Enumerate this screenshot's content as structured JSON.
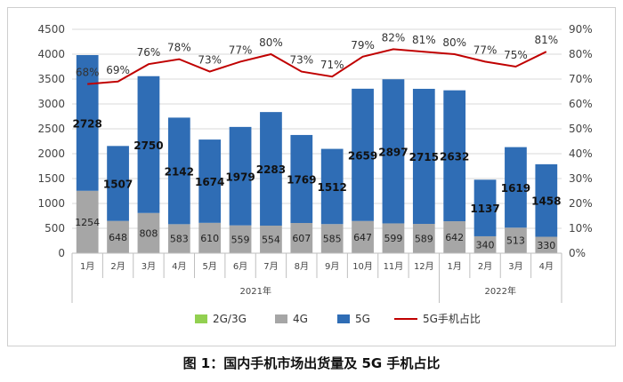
{
  "caption": "图 1：国内手机市场出货量及 5G 手机占比",
  "chart_data": {
    "type": "bar",
    "stacked": true,
    "categories": [
      "1月",
      "2月",
      "3月",
      "4月",
      "5月",
      "6月",
      "7月",
      "8月",
      "9月",
      "10月",
      "11月",
      "12月",
      "1月",
      "2月",
      "3月",
      "4月"
    ],
    "groups": [
      {
        "label": "2021年",
        "start": 0,
        "end": 11
      },
      {
        "label": "2022年",
        "start": 12,
        "end": 15
      }
    ],
    "series": [
      {
        "name": "2G/3G",
        "color": "#92d050",
        "values": [
          0,
          0,
          0,
          0,
          0,
          0,
          0,
          0,
          0,
          0,
          0,
          0,
          0,
          0,
          0,
          0
        ]
      },
      {
        "name": "4G",
        "color": "#a6a6a6",
        "values": [
          1254,
          648,
          808,
          583,
          610,
          559,
          554,
          607,
          585,
          647,
          599,
          589,
          642,
          340,
          513,
          330
        ]
      },
      {
        "name": "5G",
        "color": "#2f6db5",
        "values": [
          2728,
          1507,
          2750,
          2142,
          1674,
          1979,
          2283,
          1769,
          1512,
          2659,
          2897,
          2715,
          2632,
          1137,
          1619,
          1458
        ]
      }
    ],
    "line": {
      "name": "5G手机占比",
      "color": "#c00000",
      "values": [
        68,
        69,
        76,
        78,
        73,
        77,
        80,
        73,
        71,
        79,
        82,
        81,
        80,
        77,
        75,
        81
      ]
    },
    "y_left": {
      "min": 0,
      "max": 4500,
      "step": 500
    },
    "y_right": {
      "min": 0,
      "max": 90,
      "step": 10,
      "suffix": "%"
    },
    "legend_position": "bottom"
  }
}
